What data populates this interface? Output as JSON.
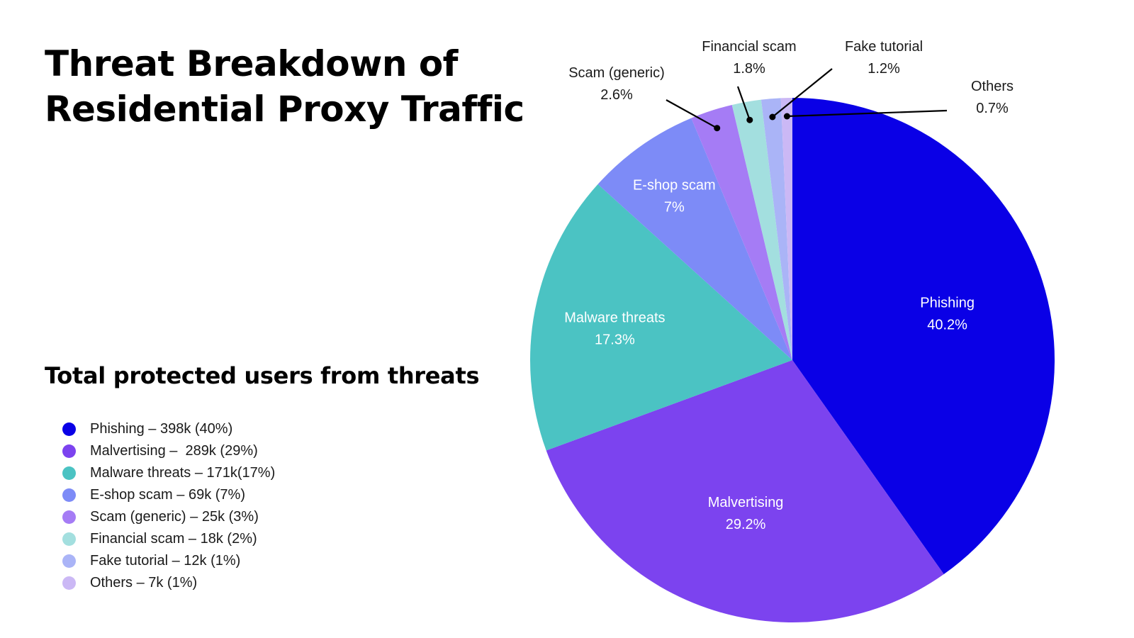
{
  "title": {
    "line1": "Threat Breakdown of",
    "line2": "Residential Proxy Traffic"
  },
  "subtitle": "Total protected users from threats",
  "legend": [
    {
      "label": "Phishing – 398k (40%)",
      "color": "#0a00e6"
    },
    {
      "label": "Malvertising –  289k (29%)",
      "color": "#7c43ef"
    },
    {
      "label": "Malware threats – 171k(17%)",
      "color": "#4bc3c3"
    },
    {
      "label": "E-shop scam – 69k (7%)",
      "color": "#7d8bf7"
    },
    {
      "label": "Scam (generic) – 25k (3%)",
      "color": "#a57cf5"
    },
    {
      "label": "Financial scam – 18k (2%)",
      "color": "#a3dfdf"
    },
    {
      "label": "Fake tutorial – 12k (1%)",
      "color": "#aab4f7"
    },
    {
      "label": "Others – 7k (1%)",
      "color": "#cbb8f5"
    }
  ],
  "chart_data": {
    "type": "pie",
    "title": "Threat Breakdown of Residential Proxy Traffic",
    "direction": "clockwise from 12 o'clock",
    "slices": [
      {
        "name": "Phishing",
        "value": 40.2,
        "label": "40.2%",
        "color": "#0a00e6",
        "label_style": "inside"
      },
      {
        "name": "Malvertising",
        "value": 29.2,
        "label": "29.2%",
        "color": "#7c43ef",
        "label_style": "inside"
      },
      {
        "name": "Malware threats",
        "value": 17.3,
        "label": "17.3%",
        "color": "#4bc3c3",
        "label_style": "inside"
      },
      {
        "name": "E-shop scam",
        "value": 7,
        "label": "7%",
        "color": "#7d8bf7",
        "label_style": "inside"
      },
      {
        "name": "Scam (generic)",
        "value": 2.6,
        "label": "2.6%",
        "color": "#a57cf5",
        "label_style": "callout"
      },
      {
        "name": "Financial scam",
        "value": 1.8,
        "label": "1.8%",
        "color": "#a3dfdf",
        "label_style": "callout"
      },
      {
        "name": "Fake tutorial",
        "value": 1.2,
        "label": "1.2%",
        "color": "#aab4f7",
        "label_style": "callout"
      },
      {
        "name": "Others",
        "value": 0.7,
        "label": "0.7%",
        "color": "#cbb8f5",
        "label_style": "callout"
      }
    ]
  }
}
